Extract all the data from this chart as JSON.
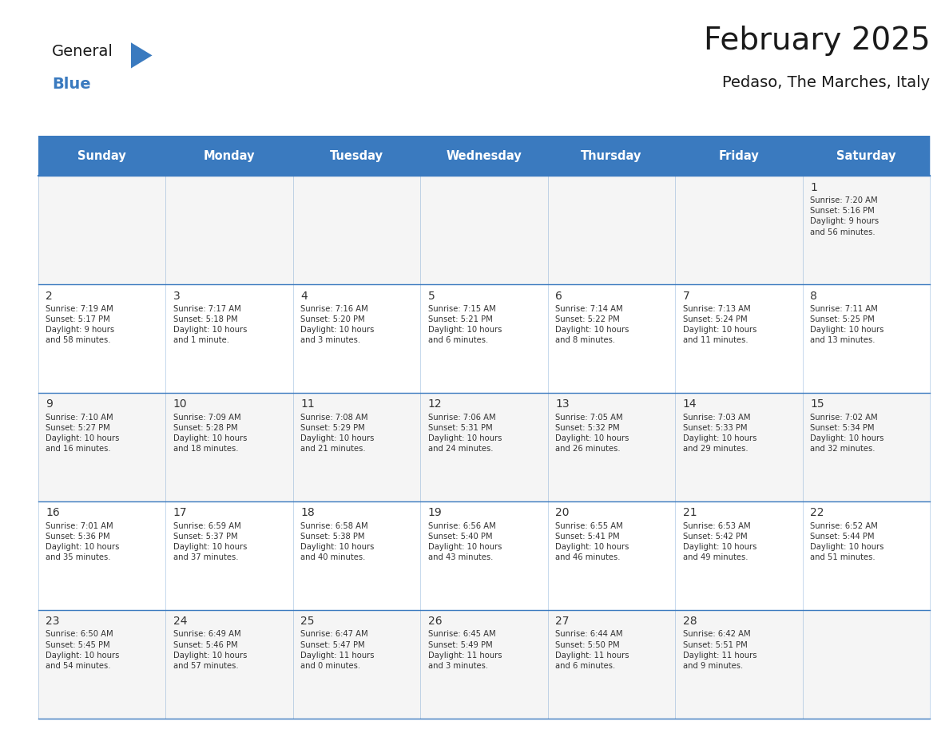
{
  "title": "February 2025",
  "subtitle": "Pedaso, The Marches, Italy",
  "header_color": "#3a7abf",
  "header_text_color": "#ffffff",
  "cell_bg_color": "#f5f5f5",
  "cell_bg_alt": "#ffffff",
  "border_color": "#3a7abf",
  "text_color": "#333333",
  "days_of_week": [
    "Sunday",
    "Monday",
    "Tuesday",
    "Wednesday",
    "Thursday",
    "Friday",
    "Saturday"
  ],
  "calendar_data": [
    [
      null,
      null,
      null,
      null,
      null,
      null,
      {
        "day": 1,
        "sunrise": "7:20 AM",
        "sunset": "5:16 PM",
        "daylight": "9 hours\nand 56 minutes."
      }
    ],
    [
      {
        "day": 2,
        "sunrise": "7:19 AM",
        "sunset": "5:17 PM",
        "daylight": "9 hours\nand 58 minutes."
      },
      {
        "day": 3,
        "sunrise": "7:17 AM",
        "sunset": "5:18 PM",
        "daylight": "10 hours\nand 1 minute."
      },
      {
        "day": 4,
        "sunrise": "7:16 AM",
        "sunset": "5:20 PM",
        "daylight": "10 hours\nand 3 minutes."
      },
      {
        "day": 5,
        "sunrise": "7:15 AM",
        "sunset": "5:21 PM",
        "daylight": "10 hours\nand 6 minutes."
      },
      {
        "day": 6,
        "sunrise": "7:14 AM",
        "sunset": "5:22 PM",
        "daylight": "10 hours\nand 8 minutes."
      },
      {
        "day": 7,
        "sunrise": "7:13 AM",
        "sunset": "5:24 PM",
        "daylight": "10 hours\nand 11 minutes."
      },
      {
        "day": 8,
        "sunrise": "7:11 AM",
        "sunset": "5:25 PM",
        "daylight": "10 hours\nand 13 minutes."
      }
    ],
    [
      {
        "day": 9,
        "sunrise": "7:10 AM",
        "sunset": "5:27 PM",
        "daylight": "10 hours\nand 16 minutes."
      },
      {
        "day": 10,
        "sunrise": "7:09 AM",
        "sunset": "5:28 PM",
        "daylight": "10 hours\nand 18 minutes."
      },
      {
        "day": 11,
        "sunrise": "7:08 AM",
        "sunset": "5:29 PM",
        "daylight": "10 hours\nand 21 minutes."
      },
      {
        "day": 12,
        "sunrise": "7:06 AM",
        "sunset": "5:31 PM",
        "daylight": "10 hours\nand 24 minutes."
      },
      {
        "day": 13,
        "sunrise": "7:05 AM",
        "sunset": "5:32 PM",
        "daylight": "10 hours\nand 26 minutes."
      },
      {
        "day": 14,
        "sunrise": "7:03 AM",
        "sunset": "5:33 PM",
        "daylight": "10 hours\nand 29 minutes."
      },
      {
        "day": 15,
        "sunrise": "7:02 AM",
        "sunset": "5:34 PM",
        "daylight": "10 hours\nand 32 minutes."
      }
    ],
    [
      {
        "day": 16,
        "sunrise": "7:01 AM",
        "sunset": "5:36 PM",
        "daylight": "10 hours\nand 35 minutes."
      },
      {
        "day": 17,
        "sunrise": "6:59 AM",
        "sunset": "5:37 PM",
        "daylight": "10 hours\nand 37 minutes."
      },
      {
        "day": 18,
        "sunrise": "6:58 AM",
        "sunset": "5:38 PM",
        "daylight": "10 hours\nand 40 minutes."
      },
      {
        "day": 19,
        "sunrise": "6:56 AM",
        "sunset": "5:40 PM",
        "daylight": "10 hours\nand 43 minutes."
      },
      {
        "day": 20,
        "sunrise": "6:55 AM",
        "sunset": "5:41 PM",
        "daylight": "10 hours\nand 46 minutes."
      },
      {
        "day": 21,
        "sunrise": "6:53 AM",
        "sunset": "5:42 PM",
        "daylight": "10 hours\nand 49 minutes."
      },
      {
        "day": 22,
        "sunrise": "6:52 AM",
        "sunset": "5:44 PM",
        "daylight": "10 hours\nand 51 minutes."
      }
    ],
    [
      {
        "day": 23,
        "sunrise": "6:50 AM",
        "sunset": "5:45 PM",
        "daylight": "10 hours\nand 54 minutes."
      },
      {
        "day": 24,
        "sunrise": "6:49 AM",
        "sunset": "5:46 PM",
        "daylight": "10 hours\nand 57 minutes."
      },
      {
        "day": 25,
        "sunrise": "6:47 AM",
        "sunset": "5:47 PM",
        "daylight": "11 hours\nand 0 minutes."
      },
      {
        "day": 26,
        "sunrise": "6:45 AM",
        "sunset": "5:49 PM",
        "daylight": "11 hours\nand 3 minutes."
      },
      {
        "day": 27,
        "sunrise": "6:44 AM",
        "sunset": "5:50 PM",
        "daylight": "11 hours\nand 6 minutes."
      },
      {
        "day": 28,
        "sunrise": "6:42 AM",
        "sunset": "5:51 PM",
        "daylight": "11 hours\nand 9 minutes."
      },
      null
    ]
  ],
  "logo_general_color": "#1a1a1a",
  "logo_blue_color": "#3a7abf",
  "n_rows": 5,
  "n_cols": 7
}
